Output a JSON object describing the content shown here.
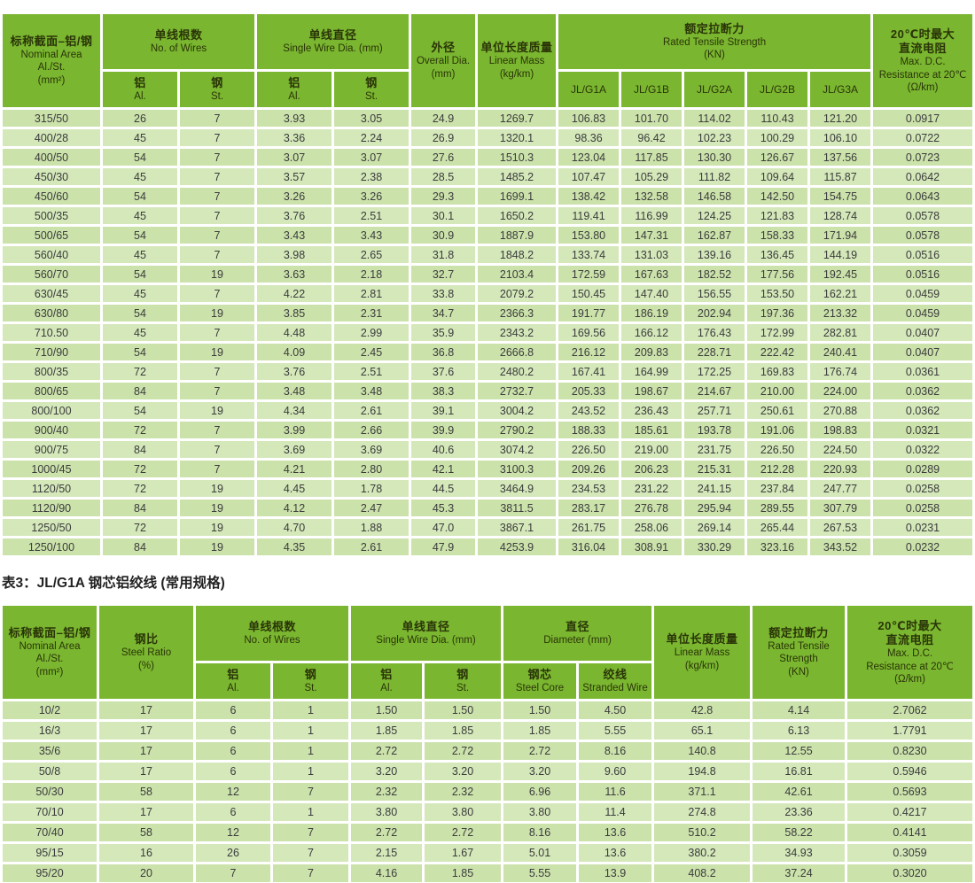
{
  "caption_table2": "表3：JL/G1A 钢芯铝绞线 (常用规格)",
  "colors": {
    "header_green": "#7ab630",
    "row_green_dark": "#cbe2ab",
    "row_green_light": "#d4e8ba",
    "header_text": "#2a3508",
    "cell_text": "#3c3c3c"
  },
  "table1": {
    "headers": {
      "nominal_area": {
        "zh": "标称截面–铝/钢",
        "en1": "Nominal Area",
        "en2": "Al./St.",
        "en3": "(mm²)"
      },
      "no_of_wires": {
        "zh": "单线根数",
        "en": "No. of Wires"
      },
      "single_wire_dia": {
        "zh": "单线直径",
        "en": "Single Wire Dia. (mm)"
      },
      "al_sub": {
        "zh": "铝",
        "en": "Al."
      },
      "st_sub": {
        "zh": "钢",
        "en": "St."
      },
      "overall_dia": {
        "zh": "外径",
        "en1": "Overall Dia.",
        "en2": "(mm)"
      },
      "linear_mass": {
        "zh": "单位长度质量",
        "en1": "Linear Mass",
        "en2": "(kg/km)"
      },
      "rated_tensile": {
        "zh": "额定拉断力",
        "en1": "Rated Tensile Strength",
        "en2": "(KN)"
      },
      "rts_sub": [
        "JL/G1A",
        "JL/G1B",
        "JL/G2A",
        "JL/G2B",
        "JL/G3A"
      ],
      "resistance": {
        "zh1": "20℃时最大",
        "zh2": "直流电阻",
        "en1": "Max. D.C.",
        "en2": "Resistance at 20℃",
        "en3": "(Ω/km)"
      }
    },
    "rows": [
      [
        "315/50",
        "26",
        "7",
        "3.93",
        "3.05",
        "24.9",
        "1269.7",
        "106.83",
        "101.70",
        "114.02",
        "110.43",
        "121.20",
        "0.0917"
      ],
      [
        "400/28",
        "45",
        "7",
        "3.36",
        "2.24",
        "26.9",
        "1320.1",
        "98.36",
        "96.42",
        "102.23",
        "100.29",
        "106.10",
        "0.0722"
      ],
      [
        "400/50",
        "54",
        "7",
        "3.07",
        "3.07",
        "27.6",
        "1510.3",
        "123.04",
        "117.85",
        "130.30",
        "126.67",
        "137.56",
        "0.0723"
      ],
      [
        "450/30",
        "45",
        "7",
        "3.57",
        "2.38",
        "28.5",
        "1485.2",
        "107.47",
        "105.29",
        "111.82",
        "109.64",
        "115.87",
        "0.0642"
      ],
      [
        "450/60",
        "54",
        "7",
        "3.26",
        "3.26",
        "29.3",
        "1699.1",
        "138.42",
        "132.58",
        "146.58",
        "142.50",
        "154.75",
        "0.0643"
      ],
      [
        "500/35",
        "45",
        "7",
        "3.76",
        "2.51",
        "30.1",
        "1650.2",
        "119.41",
        "116.99",
        "124.25",
        "121.83",
        "128.74",
        "0.0578"
      ],
      [
        "500/65",
        "54",
        "7",
        "3.43",
        "3.43",
        "30.9",
        "1887.9",
        "153.80",
        "147.31",
        "162.87",
        "158.33",
        "171.94",
        "0.0578"
      ],
      [
        "560/40",
        "45",
        "7",
        "3.98",
        "2.65",
        "31.8",
        "1848.2",
        "133.74",
        "131.03",
        "139.16",
        "136.45",
        "144.19",
        "0.0516"
      ],
      [
        "560/70",
        "54",
        "19",
        "3.63",
        "2.18",
        "32.7",
        "2103.4",
        "172.59",
        "167.63",
        "182.52",
        "177.56",
        "192.45",
        "0.0516"
      ],
      [
        "630/45",
        "45",
        "7",
        "4.22",
        "2.81",
        "33.8",
        "2079.2",
        "150.45",
        "147.40",
        "156.55",
        "153.50",
        "162.21",
        "0.0459"
      ],
      [
        "630/80",
        "54",
        "19",
        "3.85",
        "2.31",
        "34.7",
        "2366.3",
        "191.77",
        "186.19",
        "202.94",
        "197.36",
        "213.32",
        "0.0459"
      ],
      [
        "710.50",
        "45",
        "7",
        "4.48",
        "2.99",
        "35.9",
        "2343.2",
        "169.56",
        "166.12",
        "176.43",
        "172.99",
        "282.81",
        "0.0407"
      ],
      [
        "710/90",
        "54",
        "19",
        "4.09",
        "2.45",
        "36.8",
        "2666.8",
        "216.12",
        "209.83",
        "228.71",
        "222.42",
        "240.41",
        "0.0407"
      ],
      [
        "800/35",
        "72",
        "7",
        "3.76",
        "2.51",
        "37.6",
        "2480.2",
        "167.41",
        "164.99",
        "172.25",
        "169.83",
        "176.74",
        "0.0361"
      ],
      [
        "800/65",
        "84",
        "7",
        "3.48",
        "3.48",
        "38.3",
        "2732.7",
        "205.33",
        "198.67",
        "214.67",
        "210.00",
        "224.00",
        "0.0362"
      ],
      [
        "800/100",
        "54",
        "19",
        "4.34",
        "2.61",
        "39.1",
        "3004.2",
        "243.52",
        "236.43",
        "257.71",
        "250.61",
        "270.88",
        "0.0362"
      ],
      [
        "900/40",
        "72",
        "7",
        "3.99",
        "2.66",
        "39.9",
        "2790.2",
        "188.33",
        "185.61",
        "193.78",
        "191.06",
        "198.83",
        "0.0321"
      ],
      [
        "900/75",
        "84",
        "7",
        "3.69",
        "3.69",
        "40.6",
        "3074.2",
        "226.50",
        "219.00",
        "231.75",
        "226.50",
        "224.50",
        "0.0322"
      ],
      [
        "1000/45",
        "72",
        "7",
        "4.21",
        "2.80",
        "42.1",
        "3100.3",
        "209.26",
        "206.23",
        "215.31",
        "212.28",
        "220.93",
        "0.0289"
      ],
      [
        "1120/50",
        "72",
        "19",
        "4.45",
        "1.78",
        "44.5",
        "3464.9",
        "234.53",
        "231.22",
        "241.15",
        "237.84",
        "247.77",
        "0.0258"
      ],
      [
        "1120/90",
        "84",
        "19",
        "4.12",
        "2.47",
        "45.3",
        "3811.5",
        "283.17",
        "276.78",
        "295.94",
        "289.55",
        "307.79",
        "0.0258"
      ],
      [
        "1250/50",
        "72",
        "19",
        "4.70",
        "1.88",
        "47.0",
        "3867.1",
        "261.75",
        "258.06",
        "269.14",
        "265.44",
        "267.53",
        "0.0231"
      ],
      [
        "1250/100",
        "84",
        "19",
        "4.35",
        "2.61",
        "47.9",
        "4253.9",
        "316.04",
        "308.91",
        "330.29",
        "323.16",
        "343.52",
        "0.0232"
      ]
    ]
  },
  "table2": {
    "headers": {
      "nominal_area": {
        "zh": "标称截面–铝/钢",
        "en1": "Nominal Area",
        "en2": "Al./St.",
        "en3": "(mm²)"
      },
      "steel_ratio": {
        "zh": "钢比",
        "en1": "Steel Ratio",
        "en2": "(%)"
      },
      "no_of_wires": {
        "zh": "单线根数",
        "en": "No. of Wires"
      },
      "single_wire_dia": {
        "zh": "单线直径",
        "en": "Single Wire Dia. (mm)"
      },
      "al_sub": {
        "zh": "铝",
        "en": "Al."
      },
      "st_sub": {
        "zh": "钢",
        "en": "St."
      },
      "diameter": {
        "zh": "直径",
        "en": "Diameter (mm)"
      },
      "steel_core_sub": {
        "zh": "钢芯",
        "en": "Steel Core"
      },
      "stranded_wire_sub": {
        "zh": "绞线",
        "en": "Stranded Wire"
      },
      "linear_mass": {
        "zh": "单位长度质量",
        "en1": "Linear Mass",
        "en2": "(kg/km)"
      },
      "rated_tensile": {
        "zh": "额定拉断力",
        "en1": "Rated Tensile",
        "en2": "Strength",
        "en3": "(KN)"
      },
      "resistance": {
        "zh1": "20℃时最大",
        "zh2": "直流电阻",
        "en1": "Max. D.C.",
        "en2": "Resistance at 20℃",
        "en3": "(Ω/km)"
      }
    },
    "rows": [
      [
        "10/2",
        "17",
        "6",
        "1",
        "1.50",
        "1.50",
        "1.50",
        "4.50",
        "42.8",
        "4.14",
        "2.7062"
      ],
      [
        "16/3",
        "17",
        "6",
        "1",
        "1.85",
        "1.85",
        "1.85",
        "5.55",
        "65.1",
        "6.13",
        "1.7791"
      ],
      [
        "35/6",
        "17",
        "6",
        "1",
        "2.72",
        "2.72",
        "2.72",
        "8.16",
        "140.8",
        "12.55",
        "0.8230"
      ],
      [
        "50/8",
        "17",
        "6",
        "1",
        "3.20",
        "3.20",
        "3.20",
        "9.60",
        "194.8",
        "16.81",
        "0.5946"
      ],
      [
        "50/30",
        "58",
        "12",
        "7",
        "2.32",
        "2.32",
        "6.96",
        "11.6",
        "371.1",
        "42.61",
        "0.5693"
      ],
      [
        "70/10",
        "17",
        "6",
        "1",
        "3.80",
        "3.80",
        "3.80",
        "11.4",
        "274.8",
        "23.36",
        "0.4217"
      ],
      [
        "70/40",
        "58",
        "12",
        "7",
        "2.72",
        "2.72",
        "8.16",
        "13.6",
        "510.2",
        "58.22",
        "0.4141"
      ],
      [
        "95/15",
        "16",
        "26",
        "7",
        "2.15",
        "1.67",
        "5.01",
        "13.6",
        "380.2",
        "34.93",
        "0.3059"
      ],
      [
        "95/20",
        "20",
        "7",
        "7",
        "4.16",
        "1.85",
        "5.55",
        "13.9",
        "408.2",
        "37.24",
        "0.3020"
      ]
    ]
  }
}
